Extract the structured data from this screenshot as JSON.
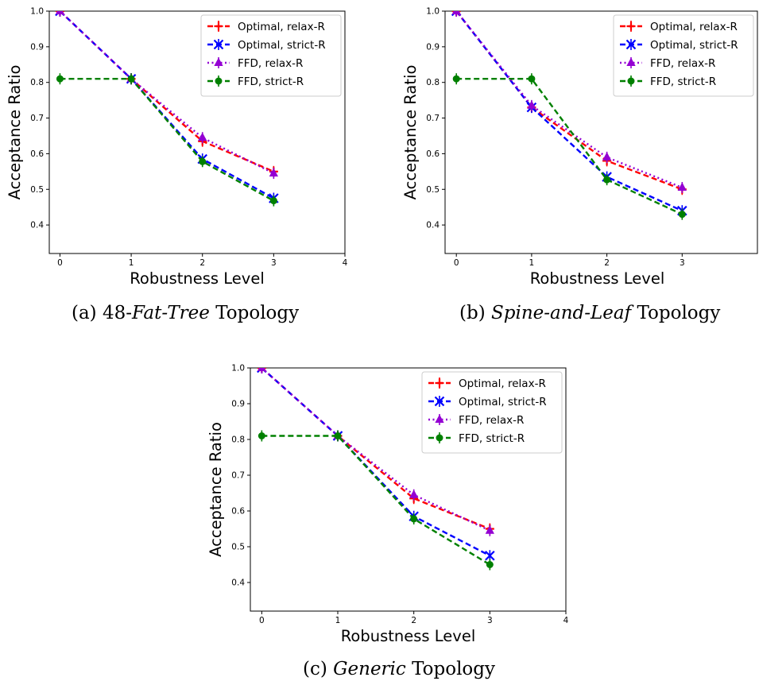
{
  "chart_data": [
    {
      "type": "line",
      "panel_label": "(a)",
      "caption_prefix": "48-",
      "caption_italic": "Fat-Tree",
      "caption_suffix": " Topology",
      "xlabel": "Robustness Level",
      "ylabel": "Acceptance Ratio",
      "xlim": [
        -0.15,
        4
      ],
      "ylim": [
        0.32,
        1.0
      ],
      "xticks": [
        "0",
        "1",
        "2",
        "3",
        "4"
      ],
      "yticks": [
        "0.4",
        "0.5",
        "0.6",
        "0.7",
        "0.8",
        "0.9",
        "1.0"
      ],
      "legend": "top-right",
      "x": [
        0,
        1,
        2,
        3
      ],
      "series": [
        {
          "name": "Optimal, relax-R",
          "values": [
            1.0,
            0.81,
            0.635,
            0.55
          ],
          "color": "#ff0000",
          "dash": "dashed",
          "marker": "plus"
        },
        {
          "name": "Optimal, strict-R",
          "values": [
            1.0,
            0.81,
            0.585,
            0.475
          ],
          "color": "#0000ff",
          "dash": "dashed",
          "marker": "x"
        },
        {
          "name": "FFD, relax-R",
          "values": [
            1.0,
            0.81,
            0.645,
            0.545
          ],
          "color": "#9400d3",
          "dash": "dotted",
          "marker": "triangle"
        },
        {
          "name": "FFD, strict-R",
          "values": [
            0.81,
            0.81,
            0.578,
            0.468
          ],
          "color": "#008000",
          "dash": "dashed",
          "marker": "circle"
        }
      ]
    },
    {
      "type": "line",
      "panel_label": "(b)",
      "caption_prefix": "",
      "caption_italic": "Spine-and-Leaf",
      "caption_suffix": " Topology",
      "xlabel": "Robustness Level",
      "ylabel": "Acceptance Ratio",
      "xlim": [
        -0.15,
        4
      ],
      "ylim": [
        0.32,
        1.0
      ],
      "xticks": [
        "0",
        "1",
        "2",
        "3"
      ],
      "yticks": [
        "0.4",
        "0.5",
        "0.6",
        "0.7",
        "0.8",
        "0.9",
        "1.0"
      ],
      "legend": "top-right",
      "x": [
        0,
        1,
        2,
        3
      ],
      "series": [
        {
          "name": "Optimal, relax-R",
          "values": [
            1.0,
            0.73,
            0.58,
            0.5
          ],
          "color": "#ff0000",
          "dash": "dashed",
          "marker": "plus"
        },
        {
          "name": "Optimal, strict-R",
          "values": [
            1.0,
            0.73,
            0.535,
            0.44
          ],
          "color": "#0000ff",
          "dash": "dashed",
          "marker": "x"
        },
        {
          "name": "FFD, relax-R",
          "values": [
            1.0,
            0.735,
            0.59,
            0.505
          ],
          "color": "#9400d3",
          "dash": "dotted",
          "marker": "triangle"
        },
        {
          "name": "FFD, strict-R",
          "values": [
            0.81,
            0.81,
            0.527,
            0.43
          ],
          "color": "#008000",
          "dash": "dashed",
          "marker": "circle"
        }
      ]
    },
    {
      "type": "line",
      "panel_label": "(c)",
      "caption_prefix": "",
      "caption_italic": "Generic",
      "caption_suffix": " Topology",
      "xlabel": "Robustness Level",
      "ylabel": "Acceptance Ratio",
      "xlim": [
        -0.15,
        4
      ],
      "ylim": [
        0.32,
        1.0
      ],
      "xticks": [
        "0",
        "1",
        "2",
        "3",
        "4"
      ],
      "yticks": [
        "0.4",
        "0.5",
        "0.6",
        "0.7",
        "0.8",
        "0.9",
        "1.0"
      ],
      "legend": "top-right",
      "x": [
        0,
        1,
        2,
        3
      ],
      "series": [
        {
          "name": "Optimal, relax-R",
          "values": [
            1.0,
            0.81,
            0.635,
            0.55
          ],
          "color": "#ff0000",
          "dash": "dashed",
          "marker": "plus"
        },
        {
          "name": "Optimal, strict-R",
          "values": [
            1.0,
            0.81,
            0.585,
            0.475
          ],
          "color": "#0000ff",
          "dash": "dashed",
          "marker": "x"
        },
        {
          "name": "FFD, relax-R",
          "values": [
            1.0,
            0.81,
            0.645,
            0.545
          ],
          "color": "#9400d3",
          "dash": "dotted",
          "marker": "triangle"
        },
        {
          "name": "FFD, strict-R",
          "values": [
            0.81,
            0.81,
            0.578,
            0.45
          ],
          "color": "#008000",
          "dash": "dashed",
          "marker": "circle"
        }
      ]
    }
  ]
}
